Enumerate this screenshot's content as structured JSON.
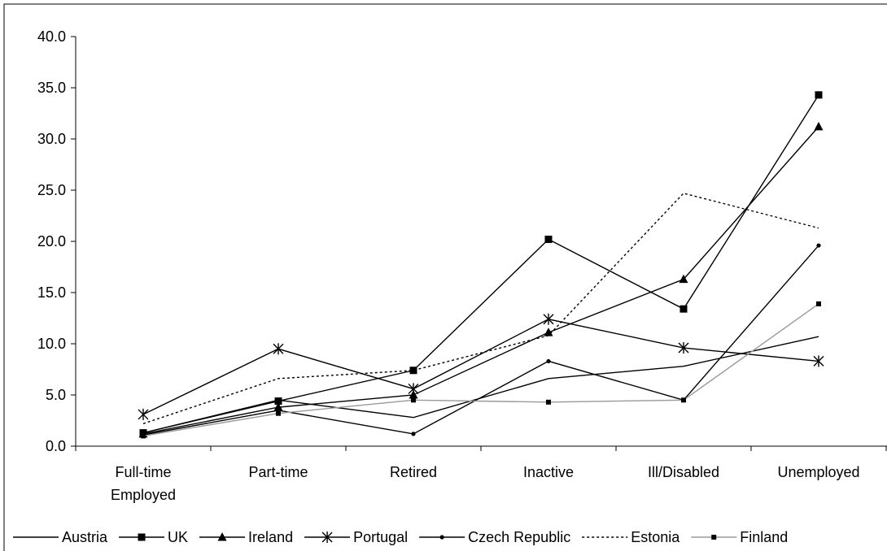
{
  "chart_data": {
    "type": "line",
    "categories": [
      "Full-time Employed",
      "Part-time",
      "Retired",
      "Inactive",
      "Ill/Disabled",
      "Unemployed"
    ],
    "category_lines": [
      [
        "Full-time",
        "Employed"
      ],
      [
        "Part-time"
      ],
      [
        "Retired"
      ],
      [
        "Inactive"
      ],
      [
        "Ill/Disabled"
      ],
      [
        "Unemployed"
      ]
    ],
    "ylim": [
      0,
      40
    ],
    "yticks": [
      "0.0",
      "5.0",
      "10.0",
      "15.0",
      "20.0",
      "25.0",
      "30.0",
      "35.0",
      "40.0"
    ],
    "grid": false,
    "legend_position": "bottom",
    "series": [
      {
        "name": "Austria",
        "values": [
          1.3,
          4.5,
          2.8,
          6.6,
          7.8,
          10.7
        ],
        "color": "#000000",
        "dash": "",
        "marker": "none"
      },
      {
        "name": "UK",
        "values": [
          1.3,
          4.4,
          7.4,
          20.2,
          13.4,
          34.3
        ],
        "color": "#000000",
        "dash": "",
        "marker": "square"
      },
      {
        "name": "Ireland",
        "values": [
          1.2,
          3.8,
          5.0,
          11.1,
          16.3,
          31.2
        ],
        "color": "#000000",
        "dash": "",
        "marker": "triangle"
      },
      {
        "name": "Portugal",
        "values": [
          3.1,
          9.5,
          5.6,
          12.4,
          9.6,
          8.3
        ],
        "color": "#000000",
        "dash": "",
        "marker": "asterisk"
      },
      {
        "name": "Czech Republic",
        "values": [
          1.1,
          3.5,
          1.2,
          8.3,
          4.5,
          19.6
        ],
        "color": "#000000",
        "dash": "",
        "marker": "dot"
      },
      {
        "name": "Estonia",
        "values": [
          2.2,
          6.6,
          7.4,
          10.8,
          24.7,
          21.3
        ],
        "color": "#000000",
        "dash": "3,3",
        "marker": "none"
      },
      {
        "name": "Finland",
        "values": [
          1.0,
          3.2,
          4.5,
          4.3,
          4.5,
          13.9
        ],
        "color": "#999999",
        "dash": "",
        "marker": "smallsquare"
      }
    ]
  }
}
